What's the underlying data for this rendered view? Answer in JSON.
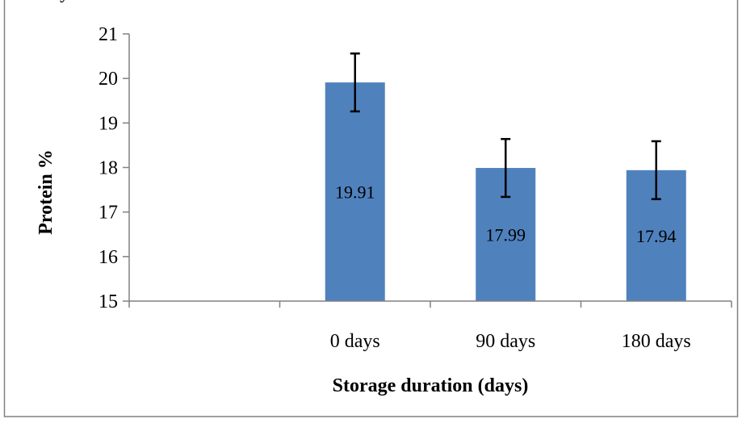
{
  "top_text_fragment": "by",
  "chart_data": {
    "type": "bar",
    "categories": [
      "",
      "0 days",
      "90 days",
      "180 days"
    ],
    "values": [
      null,
      19.91,
      17.99,
      17.94
    ],
    "error": [
      null,
      0.65,
      0.65,
      0.65
    ],
    "data_labels": [
      "",
      "19.91",
      "17.99",
      "17.94"
    ],
    "xlabel": "Storage duration (days)",
    "ylabel": "Protein %",
    "ylim": [
      15,
      21
    ],
    "yticks": [
      15,
      16,
      17,
      18,
      19,
      20,
      21
    ],
    "ytick_labels": [
      "15",
      "16",
      "17",
      "18",
      "19",
      "20",
      "21"
    ],
    "grid": false,
    "legend": "none",
    "bar_color": "#4f81bd",
    "text_color": "#000000",
    "frame_color": "#808080"
  }
}
